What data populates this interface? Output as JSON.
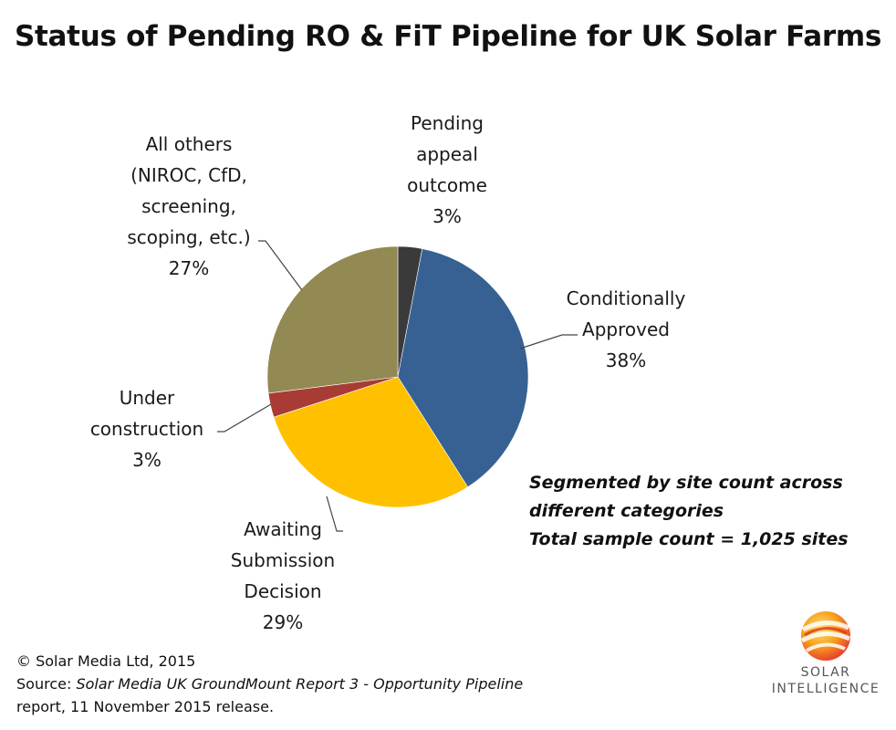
{
  "chart_data": {
    "type": "pie",
    "title": "Status of Pending RO & FiT Pipeline for UK Solar Farms",
    "slices": [
      {
        "label_lines": [
          "Pending",
          "appeal",
          "outcome",
          "3%"
        ],
        "value": 3,
        "color": "#3a3a3a"
      },
      {
        "label_lines": [
          "Conditionally",
          "Approved",
          "38%"
        ],
        "value": 38,
        "color": "#376193"
      },
      {
        "label_lines": [
          "Awaiting",
          "Submission",
          "Decision",
          "29%"
        ],
        "value": 29,
        "color": "#ffc000"
      },
      {
        "label_lines": [
          "Under",
          "construction",
          "3%"
        ],
        "value": 3,
        "color": "#a93b35"
      },
      {
        "label_lines": [
          "All others",
          "(NIROC, CfD,",
          "screening,",
          "scoping, etc.)",
          "27%"
        ],
        "value": 27,
        "color": "#938952"
      }
    ]
  },
  "note": {
    "line1": "Segmented by site count across",
    "line2": "different categories",
    "line3": "Total sample count = 1,025 sites"
  },
  "footer": {
    "copyright": "© Solar Media Ltd, 2015",
    "source_prefix": "Source: ",
    "source_title": "Solar Media UK GroundMount Report 3 - Opportunity Pipeline",
    "source_suffix": "report, 11 November 2015 release."
  },
  "logo": {
    "icon": "solar-sphere-icon",
    "line1": "SOLAR",
    "line2": "INTELLIGENCE",
    "colors": [
      "#f7a21b",
      "#e8452c",
      "#ffd23f"
    ]
  }
}
